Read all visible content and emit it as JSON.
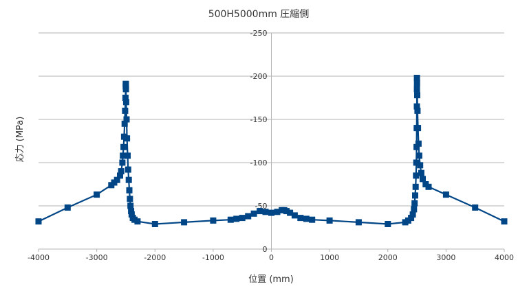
{
  "chart_data": {
    "type": "scatter",
    "title": "500H5000mm 圧縮側",
    "xlabel": "位置 (mm)",
    "ylabel": "応力 (MPa)",
    "xlim": [
      -4000,
      4000
    ],
    "ylim": [
      0,
      -250
    ],
    "y_axis_reversed": true,
    "x_ticks": [
      "-4000",
      "-3000",
      "-2000",
      "-1000",
      "0",
      "1000",
      "2000",
      "3000",
      "4000"
    ],
    "y_ticks": [
      "0",
      "-50",
      "-100",
      "-150",
      "-200",
      "-250"
    ],
    "grid": "horizontal",
    "legend": "none",
    "colors": {
      "series": "#004586",
      "grid": "#b3b3b3",
      "axis": "#b3b3b3",
      "text": "#333333"
    },
    "series": [
      {
        "marker": "square",
        "line": true,
        "points": [
          [
            -4000,
            -32
          ],
          [
            -3500,
            -48
          ],
          [
            -3000,
            -63
          ],
          [
            -2750,
            -74
          ],
          [
            -2700,
            -77
          ],
          [
            -2650,
            -80
          ],
          [
            -2600,
            -85
          ],
          [
            -2580,
            -90
          ],
          [
            -2560,
            -100
          ],
          [
            -2550,
            -108
          ],
          [
            -2540,
            -118
          ],
          [
            -2530,
            -130
          ],
          [
            -2520,
            -145
          ],
          [
            -2512,
            -160
          ],
          [
            -2506,
            -175
          ],
          [
            -2502,
            -188
          ],
          [
            -2500,
            -191
          ],
          [
            -2500,
            -191
          ],
          [
            -2498,
            -185
          ],
          [
            -2494,
            -170
          ],
          [
            -2488,
            -150
          ],
          [
            -2480,
            -128
          ],
          [
            -2470,
            -108
          ],
          [
            -2460,
            -92
          ],
          [
            -2450,
            -80
          ],
          [
            -2440,
            -68
          ],
          [
            -2430,
            -58
          ],
          [
            -2420,
            -50
          ],
          [
            -2410,
            -44
          ],
          [
            -2400,
            -40
          ],
          [
            -2380,
            -36
          ],
          [
            -2350,
            -34
          ],
          [
            -2300,
            -32
          ],
          [
            -2000,
            -29
          ],
          [
            -1500,
            -31
          ],
          [
            -1000,
            -33
          ],
          [
            -700,
            -34
          ],
          [
            -600,
            -35
          ],
          [
            -500,
            -36
          ],
          [
            -400,
            -38
          ],
          [
            -300,
            -41
          ],
          [
            -200,
            -44
          ],
          [
            -100,
            -43
          ],
          [
            0,
            -42
          ],
          [
            100,
            -43
          ],
          [
            180,
            -45
          ],
          [
            220,
            -45
          ],
          [
            260,
            -44
          ],
          [
            320,
            -42
          ],
          [
            400,
            -39
          ],
          [
            500,
            -36
          ],
          [
            600,
            -35
          ],
          [
            700,
            -34
          ],
          [
            1000,
            -33
          ],
          [
            1500,
            -31
          ],
          [
            2000,
            -29
          ],
          [
            2300,
            -31
          ],
          [
            2350,
            -33
          ],
          [
            2400,
            -36
          ],
          [
            2430,
            -40
          ],
          [
            2450,
            -46
          ],
          [
            2460,
            -53
          ],
          [
            2470,
            -62
          ],
          [
            2478,
            -72
          ],
          [
            2485,
            -85
          ],
          [
            2490,
            -100
          ],
          [
            2494,
            -118
          ],
          [
            2497,
            -140
          ],
          [
            2499,
            -165
          ],
          [
            2500,
            -185
          ],
          [
            2500,
            -198
          ],
          [
            2502,
            -192
          ],
          [
            2505,
            -178
          ],
          [
            2510,
            -160
          ],
          [
            2518,
            -140
          ],
          [
            2528,
            -122
          ],
          [
            2540,
            -108
          ],
          [
            2555,
            -97
          ],
          [
            2575,
            -88
          ],
          [
            2600,
            -81
          ],
          [
            2650,
            -75
          ],
          [
            2700,
            -72
          ],
          [
            3000,
            -63
          ],
          [
            3500,
            -48
          ],
          [
            4000,
            -32
          ]
        ]
      }
    ]
  }
}
